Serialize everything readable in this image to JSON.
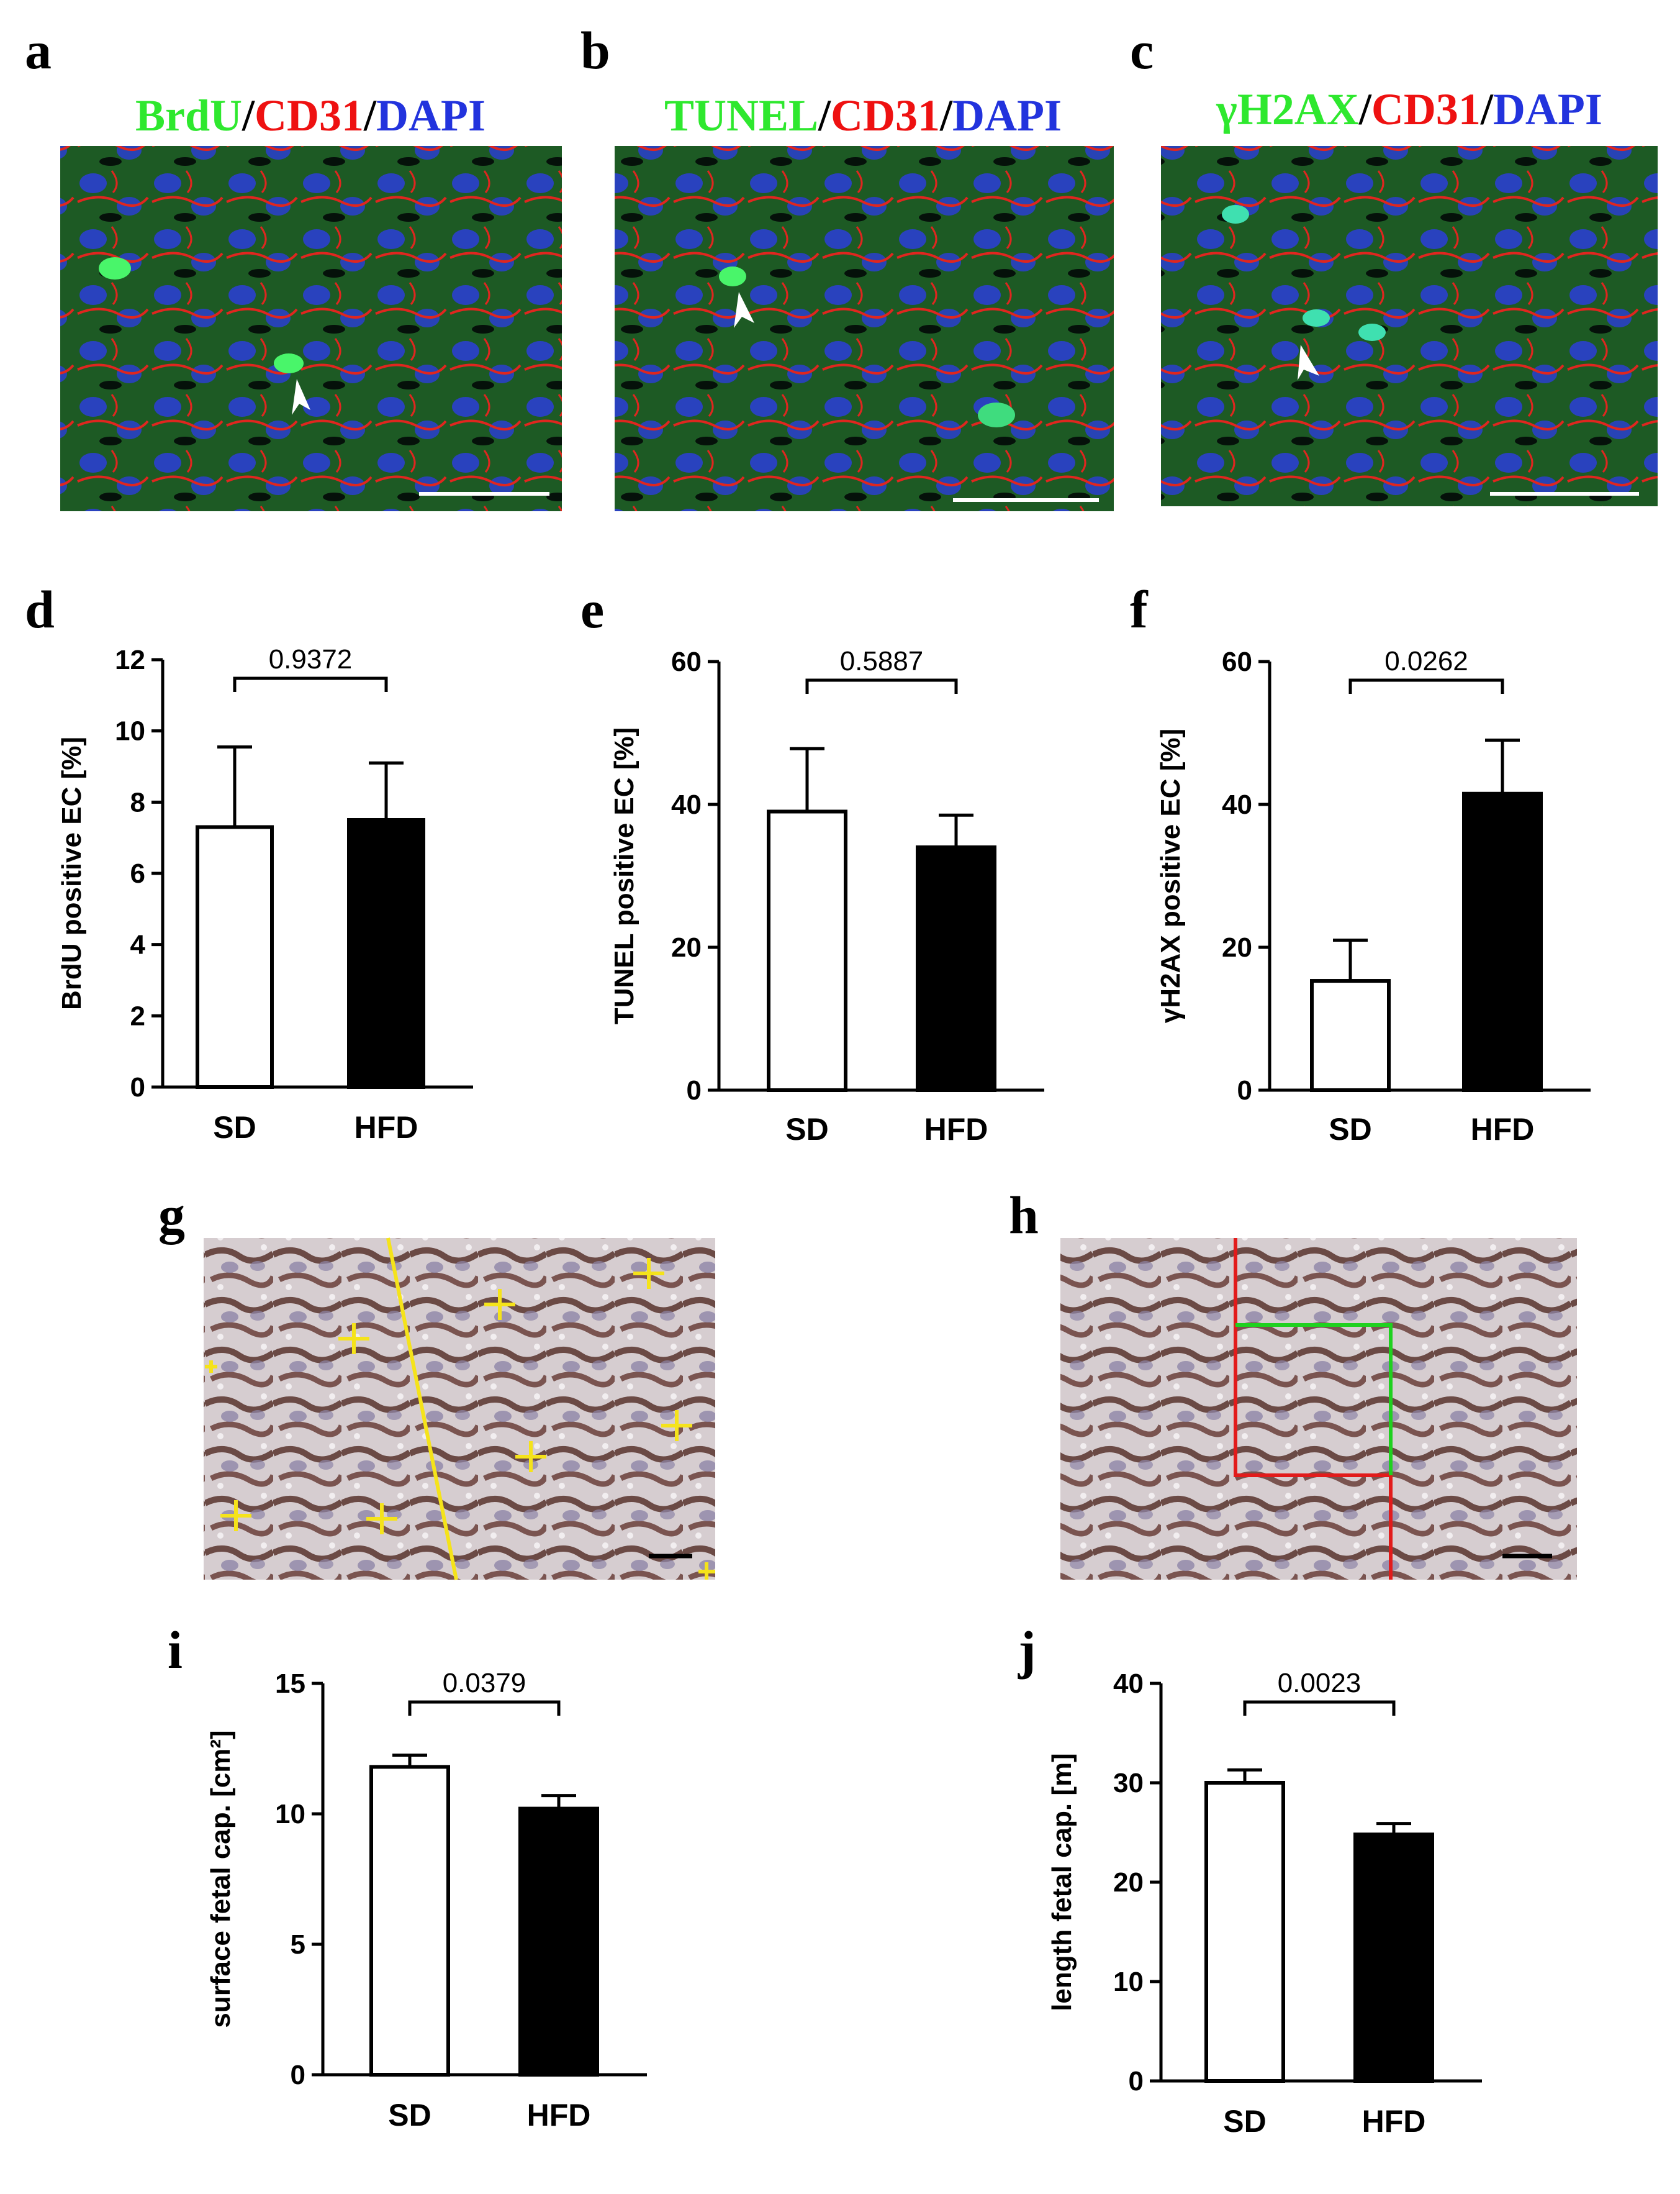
{
  "micrographs_fluor": [
    {
      "letter": "a",
      "title": [
        {
          "text": "BrdU",
          "color": "#2ee82e"
        },
        {
          "text": "/",
          "color": "#000000"
        },
        {
          "text": "CD31",
          "color": "#ee1111"
        },
        {
          "text": "/",
          "color": "#000000"
        },
        {
          "text": "DAPI",
          "color": "#2233dd"
        }
      ]
    },
    {
      "letter": "b",
      "title": [
        {
          "text": "TUNEL",
          "color": "#2ee82e"
        },
        {
          "text": "/",
          "color": "#000000"
        },
        {
          "text": "CD31",
          "color": "#ee1111"
        },
        {
          "text": "/",
          "color": "#000000"
        },
        {
          "text": "DAPI",
          "color": "#2233dd"
        }
      ]
    },
    {
      "letter": "c",
      "title": [
        {
          "text": "γH2AX",
          "color": "#2ee82e"
        },
        {
          "text": "/",
          "color": "#000000"
        },
        {
          "text": "CD31",
          "color": "#ee1111"
        },
        {
          "text": "/",
          "color": "#000000"
        },
        {
          "text": "DAPI",
          "color": "#2233dd"
        }
      ]
    }
  ],
  "micrographs_bright": [
    {
      "letter": "g"
    },
    {
      "letter": "h"
    }
  ],
  "chart_data": [
    {
      "letter": "d",
      "type": "bar",
      "categories": [
        "SD",
        "HFD"
      ],
      "values": [
        7.3,
        7.5
      ],
      "errors": [
        2.25,
        1.6
      ],
      "ylabel": "BrdU positive EC [%]",
      "ylim": [
        0,
        12
      ],
      "yticks": [
        0,
        2,
        4,
        6,
        8,
        10,
        12
      ],
      "pvalue": "0.9372"
    },
    {
      "letter": "e",
      "type": "bar",
      "categories": [
        "SD",
        "HFD"
      ],
      "values": [
        39,
        34
      ],
      "errors": [
        8.8,
        4.5
      ],
      "ylabel": "TUNEL positive EC [%]",
      "ylim": [
        0,
        60
      ],
      "yticks": [
        0,
        20,
        40,
        60
      ],
      "pvalue": "0.5887"
    },
    {
      "letter": "f",
      "type": "bar",
      "categories": [
        "SD",
        "HFD"
      ],
      "values": [
        15.3,
        41.5
      ],
      "errors": [
        5.7,
        7.5
      ],
      "ylabel": "γH2AX positive EC [%]",
      "ylim": [
        0,
        60
      ],
      "yticks": [
        0,
        20,
        40,
        60
      ],
      "pvalue": "0.0262"
    },
    {
      "letter": "i",
      "type": "bar",
      "categories": [
        "SD",
        "HFD"
      ],
      "values": [
        11.8,
        10.2
      ],
      "errors": [
        0.45,
        0.5
      ],
      "ylabel": "surface fetal cap. [cm²]",
      "ylim": [
        0,
        15
      ],
      "yticks": [
        0,
        5,
        10,
        15
      ],
      "pvalue": "0.0379"
    },
    {
      "letter": "j",
      "type": "bar",
      "categories": [
        "SD",
        "HFD"
      ],
      "values": [
        30,
        24.8
      ],
      "errors": [
        1.3,
        1.1
      ],
      "ylabel": "length fetal cap. [m]",
      "ylim": [
        0,
        40
      ],
      "yticks": [
        0,
        10,
        20,
        30,
        40
      ],
      "pvalue": "0.0023"
    }
  ]
}
